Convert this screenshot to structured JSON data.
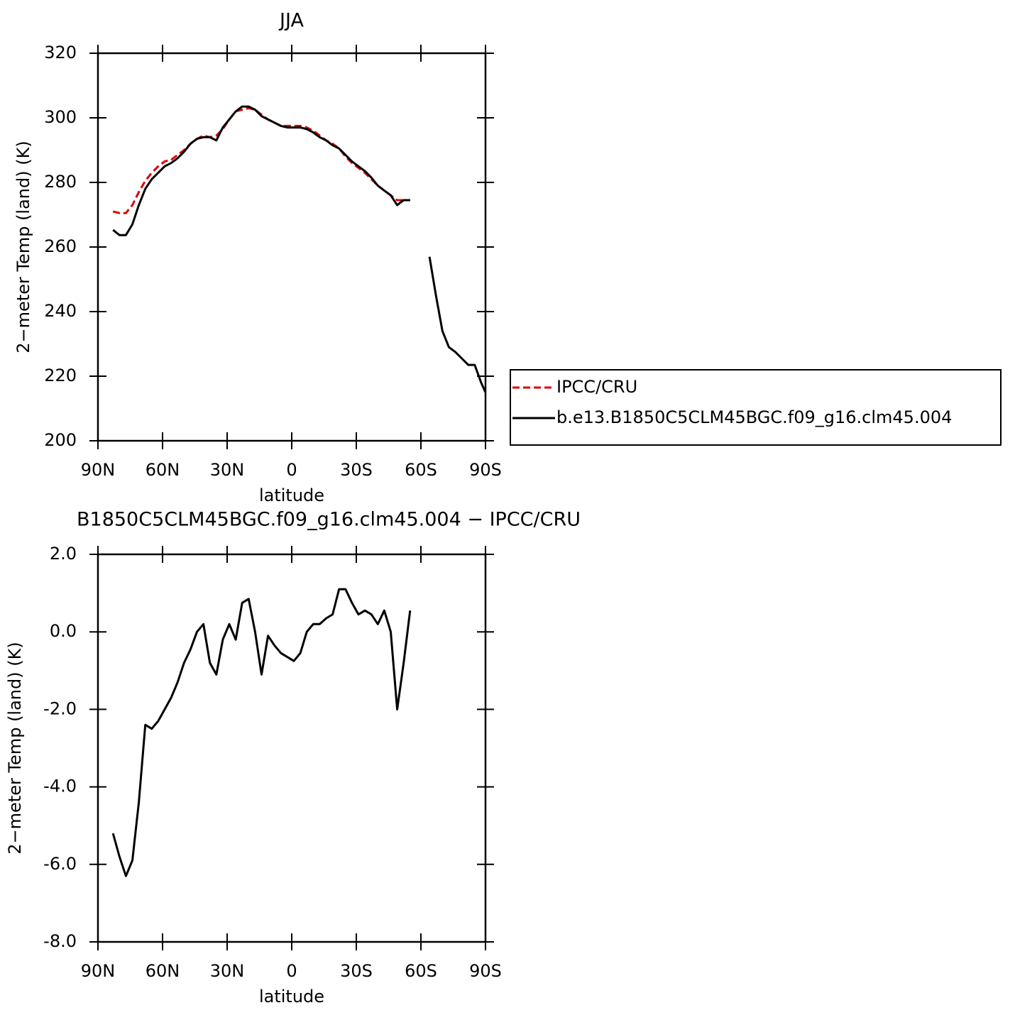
{
  "chart_data": [
    {
      "type": "line",
      "title": "JJA",
      "xlabel": "latitude",
      "ylabel": "2−meter Temp (land) (K)",
      "x": [
        83,
        80,
        77,
        74,
        71,
        68,
        65,
        62,
        59,
        56,
        53,
        50,
        47,
        44,
        41,
        38,
        35,
        32,
        29,
        26,
        23,
        20,
        17,
        14,
        11,
        8,
        5,
        2,
        -1,
        -4,
        -7,
        -10,
        -13,
        -16,
        -19,
        -22,
        -25,
        -28,
        -31,
        -34,
        -37,
        -40,
        -43,
        -46,
        -49,
        -52,
        -55,
        -58,
        -64,
        -67,
        -70,
        -73,
        -76,
        -79,
        -82,
        -85,
        -88,
        -90
      ],
      "series": [
        {
          "name": "IPCC/CRU",
          "color": "#e00000",
          "line_style": "dashed",
          "values": [
            271,
            270.5,
            270.5,
            273,
            277,
            280.5,
            283,
            285,
            286.5,
            287,
            288.5,
            290,
            292,
            293.5,
            294.5,
            294,
            294.5,
            296.5,
            299.5,
            302,
            302.5,
            303,
            302.5,
            301,
            299.5,
            298.5,
            297.5,
            297.5,
            297.5,
            297.5,
            297,
            296,
            294.5,
            293,
            292,
            290.5,
            288,
            286,
            284.5,
            283,
            281,
            279,
            277.5,
            276,
            274.5,
            274.5,
            274.5,
            null,
            null,
            null,
            null,
            null,
            null,
            null,
            null,
            null,
            null,
            null
          ]
        },
        {
          "name": "b.e13.B1850C5CLM45BGC.f09_g16.clm45.004",
          "color": "#000000",
          "line_style": "solid",
          "values": [
            265.3,
            263.7,
            263.7,
            267,
            273,
            278,
            281,
            283,
            285,
            286,
            287.5,
            289.5,
            292,
            293.5,
            294,
            294,
            293,
            297,
            299.5,
            302,
            303.5,
            303.5,
            302.5,
            300.5,
            299.5,
            298.5,
            297.5,
            297,
            297,
            297,
            296.5,
            295.5,
            294,
            293,
            291.5,
            290.5,
            288.5,
            286.5,
            285,
            283.5,
            281.5,
            279,
            277.5,
            276,
            273,
            274.5,
            274.5,
            null,
            257,
            245,
            234,
            229,
            227.5,
            225.5,
            223.5,
            223.5,
            218,
            215
          ]
        }
      ],
      "xlim": [
        90,
        -90
      ],
      "xticks": [
        {
          "value": 90,
          "label": "90N"
        },
        {
          "value": 60,
          "label": "60N"
        },
        {
          "value": 30,
          "label": "30N"
        },
        0,
        {
          "value": -30,
          "label": "30S"
        },
        {
          "value": -60,
          "label": "60S"
        },
        {
          "value": -90,
          "label": "90S"
        }
      ],
      "ylim": [
        200,
        320
      ],
      "yticks": [
        200,
        220,
        240,
        260,
        280,
        300,
        320
      ],
      "legend": "right"
    },
    {
      "type": "line",
      "title": "B1850C5CLM45BGC.f09_g16.clm45.004 − IPCC/CRU",
      "xlabel": "latitude",
      "ylabel": "2−meter Temp (land) (K)",
      "x": [
        83,
        80,
        77,
        74,
        71,
        68,
        65,
        62,
        59,
        56,
        53,
        50,
        47,
        44,
        41,
        38,
        35,
        32,
        29,
        26,
        23,
        20,
        17,
        14,
        11,
        8,
        5,
        2,
        -1,
        -4,
        -7,
        -10,
        -13,
        -16,
        -19,
        -22,
        -25,
        -28,
        -31,
        -34,
        -37,
        -40,
        -43,
        -46,
        -49,
        -52,
        -55
      ],
      "color": "#000000",
      "values": [
        -5.2,
        -5.8,
        -6.3,
        -5.9,
        -4.4,
        -2.4,
        -2.5,
        -2.3,
        -2.0,
        -1.7,
        -1.3,
        -0.8,
        -0.45,
        0.0,
        0.2,
        -0.8,
        -1.1,
        -0.2,
        0.2,
        -0.2,
        0.75,
        0.85,
        0.0,
        -1.1,
        -0.1,
        -0.35,
        -0.55,
        -0.65,
        -0.75,
        -0.55,
        0.0,
        0.2,
        0.2,
        0.35,
        0.45,
        1.1,
        1.1,
        0.75,
        0.45,
        0.55,
        0.45,
        0.2,
        0.55,
        0.0,
        -2.0,
        -0.8,
        0.55
      ],
      "xlim": [
        90,
        -90
      ],
      "xticks": [
        {
          "value": 90,
          "label": "90N"
        },
        {
          "value": 60,
          "label": "60N"
        },
        {
          "value": 30,
          "label": "30N"
        },
        0,
        {
          "value": -30,
          "label": "30S"
        },
        {
          "value": -60,
          "label": "60S"
        },
        {
          "value": -90,
          "label": "90S"
        }
      ],
      "ylim": [
        -8,
        2
      ],
      "yticks": [
        {
          "value": -8,
          "label": "-8.0"
        },
        {
          "value": -6,
          "label": "-6.0"
        },
        {
          "value": -4,
          "label": "-4.0"
        },
        {
          "value": -2,
          "label": "-2.0"
        },
        {
          "value": 0,
          "label": "0.0"
        },
        {
          "value": 2,
          "label": "2.0"
        }
      ]
    }
  ]
}
